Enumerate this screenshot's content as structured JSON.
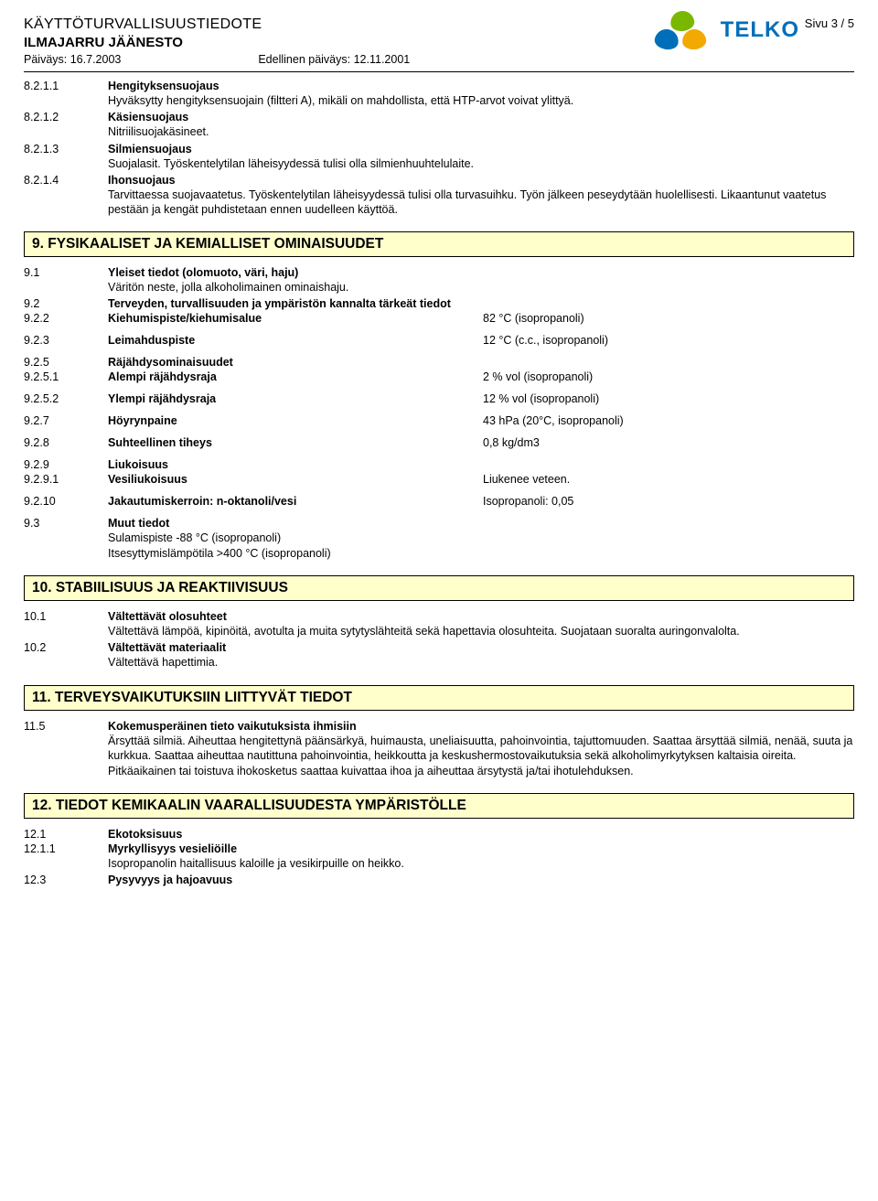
{
  "header": {
    "doc_title": "KÄYTTÖTURVALLISUUSTIEDOTE",
    "page_label": "Sivu  3 / 5",
    "product": "ILMAJARRU JÄÄNESTO",
    "date_prefix": "Päiväys:",
    "date": "16.7.2003",
    "prev_date_prefix": "Edellinen päiväys:",
    "prev_date": "12.11.2001",
    "logo_text": "TELKO"
  },
  "s8": {
    "e1": {
      "num": "8.2.1.1",
      "label": "Hengityksensuojaus",
      "text": "Hyväksytty hengityksensuojain (filtteri A), mikäli on mahdollista, että HTP-arvot voivat ylittyä."
    },
    "e2": {
      "num": "8.2.1.2",
      "label": "Käsiensuojaus",
      "text": "Nitriilisuojakäsineet."
    },
    "e3": {
      "num": "8.2.1.3",
      "label": "Silmiensuojaus",
      "text": "Suojalasit. Työskentelytilan läheisyydessä tulisi olla silmienhuuhtelulaite."
    },
    "e4": {
      "num": "8.2.1.4",
      "label": "Ihonsuojaus",
      "text": "Tarvittaessa suojavaatetus. Työskentelytilan läheisyydessä tulisi olla turvasuihku. Työn jälkeen peseydytään huolellisesti. Likaantunut vaatetus pestään ja kengät puhdistetaan ennen uudelleen käyttöä."
    }
  },
  "s9": {
    "heading": "9. FYSIKAALISET JA KEMIALLISET OMINAISUUDET",
    "e91": {
      "num": "9.1",
      "label": "Yleiset tiedot (olomuoto, väri, haju)",
      "text": "Väritön neste, jolla alkoholimainen ominaishaju."
    },
    "e92": {
      "num": "9.2",
      "label": "Terveyden, turvallisuuden ja ympäristön kannalta tärkeät tiedot"
    },
    "e922": {
      "num": "9.2.2",
      "label": "Kiehumispiste/kiehumisalue",
      "value": "82 °C (isopropanoli)"
    },
    "e923": {
      "num": "9.2.3",
      "label": "Leimahduspiste",
      "value": "12 °C (c.c., isopropanoli)"
    },
    "e925": {
      "num": "9.2.5",
      "label": "Räjähdysominaisuudet"
    },
    "e9251": {
      "num": "9.2.5.1",
      "label": "Alempi räjähdysraja",
      "value": "2 % vol (isopropanoli)"
    },
    "e9252": {
      "num": "9.2.5.2",
      "label": "Ylempi räjähdysraja",
      "value": "12 % vol (isopropanoli)"
    },
    "e927": {
      "num": "9.2.7",
      "label": "Höyrynpaine",
      "value": "43 hPa (20°C, isopropanoli)"
    },
    "e928": {
      "num": "9.2.8",
      "label": "Suhteellinen tiheys",
      "value": "0,8 kg/dm3"
    },
    "e929": {
      "num": "9.2.9",
      "label": "Liukoisuus"
    },
    "e9291": {
      "num": "9.2.9.1",
      "label": "Vesiliukoisuus",
      "value": "Liukenee veteen."
    },
    "e9210": {
      "num": "9.2.10",
      "label": "Jakautumiskerroin: n-oktanoli/vesi",
      "value": "Isopropanoli: 0,05"
    },
    "e93": {
      "num": "9.3",
      "label": "Muut tiedot",
      "text1": "Sulamispiste -88 °C (isopropanoli)",
      "text2": "Itsesyttymislämpötila >400 °C (isopropanoli)"
    }
  },
  "s10": {
    "heading": "10. STABIILISUUS JA REAKTIIVISUUS",
    "e101": {
      "num": "10.1",
      "label": "Vältettävät olosuhteet",
      "text": "Vältettävä lämpöä, kipinöitä, avotulta ja muita sytytyslähteitä sekä hapettavia olosuhteita. Suojataan suoralta auringonvalolta."
    },
    "e102": {
      "num": "10.2",
      "label": "Vältettävät materiaalit",
      "text": "Vältettävä hapettimia."
    }
  },
  "s11": {
    "heading": "11. TERVEYSVAIKUTUKSIIN LIITTYVÄT TIEDOT",
    "e115": {
      "num": "11.5",
      "label": "Kokemusperäinen tieto vaikutuksista ihmisiin",
      "text1": "Ärsyttää silmiä. Aiheuttaa hengitettynä päänsärkyä, huimausta, uneliaisuutta, pahoinvointia, tajuttomuuden. Saattaa ärsyttää silmiä, nenää, suuta ja kurkkua. Saattaa aiheuttaa nautittuna pahoinvointia, heikkoutta ja keskushermostovaikutuksia sekä alkoholimyrkytyksen kaltaisia oireita.",
      "text2": "Pitkäaikainen tai toistuva ihokosketus saattaa kuivattaa ihoa ja aiheuttaa ärsytystä ja/tai ihotulehduksen."
    }
  },
  "s12": {
    "heading": "12. TIEDOT KEMIKAALIN VAARALLISUUDESTA YMPÄRISTÖLLE",
    "e121": {
      "num": "12.1",
      "label": "Ekotoksisuus"
    },
    "e1211": {
      "num": "12.1.1",
      "label": "Myrkyllisyys vesieliöille",
      "text": "Isopropanolin haitallisuus kaloille ja vesikirpuille on heikko."
    },
    "e123": {
      "num": "12.3",
      "label": "Pysyvyys ja hajoavuus"
    }
  }
}
